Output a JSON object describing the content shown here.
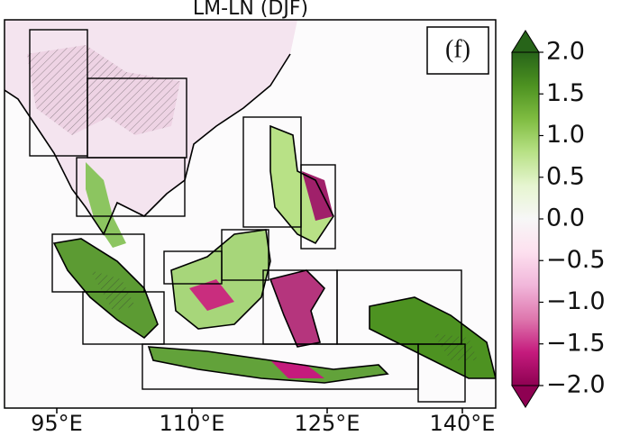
{
  "title": "LM-LN (DJF)",
  "panel_label": "(f)",
  "xlim": [
    89.2,
    143.7
  ],
  "xticks": [
    {
      "value": 95,
      "label": "95°E"
    },
    {
      "value": 110,
      "label": "110°E"
    },
    {
      "value": 125,
      "label": "125°E"
    },
    {
      "value": 140,
      "label": "140°E"
    }
  ],
  "colorbar": {
    "lim": [
      -2,
      2
    ],
    "colormap": [
      "#8e0152",
      "#c51b7d",
      "#de77ae",
      "#f1b6da",
      "#fde0ef",
      "#f7f7f7",
      "#e6f5d0",
      "#b8e186",
      "#7fbc41",
      "#4d9221",
      "#276419"
    ],
    "ticks": [
      {
        "value": 2,
        "label": "2.0"
      },
      {
        "value": 1.5,
        "label": "1.5"
      },
      {
        "value": 1,
        "label": "1.0"
      },
      {
        "value": 0.5,
        "label": "0.5"
      },
      {
        "value": 0,
        "label": "0.0"
      },
      {
        "value": -0.5,
        "label": "−0.5"
      },
      {
        "value": -1,
        "label": "−1.0"
      },
      {
        "value": -1.5,
        "label": "−1.5"
      },
      {
        "value": -2,
        "label": "−2.0"
      }
    ]
  }
}
